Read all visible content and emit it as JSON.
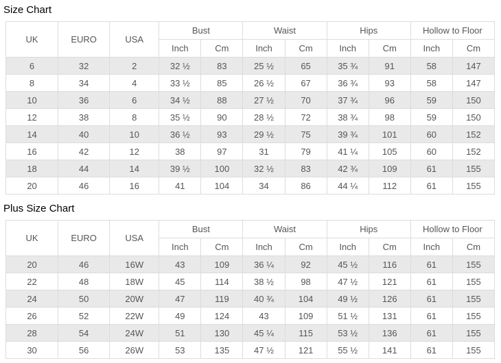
{
  "titles": {
    "size_chart": "Size Chart",
    "plus_size_chart": "Plus Size Chart"
  },
  "columns": {
    "uk": "UK",
    "euro": "EURO",
    "usa": "USA",
    "bust": "Bust",
    "waist": "Waist",
    "hips": "Hips",
    "hollow_to_floor": "Hollow to Floor",
    "inch": "Inch",
    "cm": "Cm"
  },
  "size_chart": {
    "rows": [
      [
        "6",
        "32",
        "2",
        "32 ½",
        "83",
        "25 ½",
        "65",
        "35 ¾",
        "91",
        "58",
        "147"
      ],
      [
        "8",
        "34",
        "4",
        "33 ½",
        "85",
        "26 ½",
        "67",
        "36 ¾",
        "93",
        "58",
        "147"
      ],
      [
        "10",
        "36",
        "6",
        "34 ½",
        "88",
        "27 ½",
        "70",
        "37 ¾",
        "96",
        "59",
        "150"
      ],
      [
        "12",
        "38",
        "8",
        "35 ½",
        "90",
        "28 ½",
        "72",
        "38 ¾",
        "98",
        "59",
        "150"
      ],
      [
        "14",
        "40",
        "10",
        "36 ½",
        "93",
        "29 ½",
        "75",
        "39 ¾",
        "101",
        "60",
        "152"
      ],
      [
        "16",
        "42",
        "12",
        "38",
        "97",
        "31",
        "79",
        "41 ¼",
        "105",
        "60",
        "152"
      ],
      [
        "18",
        "44",
        "14",
        "39 ½",
        "100",
        "32 ½",
        "83",
        "42 ¾",
        "109",
        "61",
        "155"
      ],
      [
        "20",
        "46",
        "16",
        "41",
        "104",
        "34",
        "86",
        "44 ¼",
        "112",
        "61",
        "155"
      ]
    ]
  },
  "plus_size_chart": {
    "rows": [
      [
        "20",
        "46",
        "16W",
        "43",
        "109",
        "36 ¼",
        "92",
        "45 ½",
        "116",
        "61",
        "155"
      ],
      [
        "22",
        "48",
        "18W",
        "45",
        "114",
        "38 ½",
        "98",
        "47 ½",
        "121",
        "61",
        "155"
      ],
      [
        "24",
        "50",
        "20W",
        "47",
        "119",
        "40 ¾",
        "104",
        "49 ½",
        "126",
        "61",
        "155"
      ],
      [
        "26",
        "52",
        "22W",
        "49",
        "124",
        "43",
        "109",
        "51 ½",
        "131",
        "61",
        "155"
      ],
      [
        "28",
        "54",
        "24W",
        "51",
        "130",
        "45 ¼",
        "115",
        "53 ½",
        "136",
        "61",
        "155"
      ],
      [
        "30",
        "56",
        "26W",
        "53",
        "135",
        "47 ½",
        "121",
        "55 ½",
        "141",
        "61",
        "155"
      ]
    ]
  },
  "colors": {
    "stripe": "#e9e9e9",
    "border": "#dcdcdc",
    "text": "#555555",
    "title": "#000000",
    "header_bg": "#ffffff"
  }
}
